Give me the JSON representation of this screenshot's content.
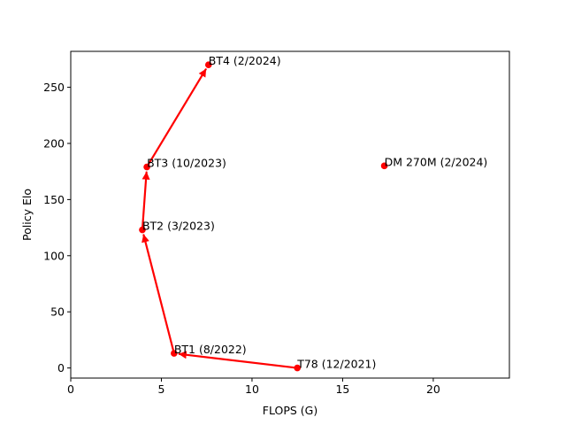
{
  "chart_data": {
    "type": "scatter",
    "xlabel": "FLOPS (G)",
    "ylabel": "Policy Elo",
    "xlim": [
      0,
      24.2
    ],
    "ylim": [
      -9,
      282
    ],
    "x_ticks": [
      0,
      5,
      10,
      15,
      20
    ],
    "y_ticks": [
      0,
      50,
      100,
      150,
      200,
      250
    ],
    "grid": false,
    "line_color": "#ff0000",
    "points": [
      {
        "label": "T78 (12/2021)",
        "x": 12.5,
        "y": 0
      },
      {
        "label": "BT1 (8/2022)",
        "x": 5.7,
        "y": 13
      },
      {
        "label": "BT2 (3/2023)",
        "x": 3.95,
        "y": 123
      },
      {
        "label": "BT3 (10/2023)",
        "x": 4.2,
        "y": 179
      },
      {
        "label": "BT4 (2/2024)",
        "x": 7.6,
        "y": 270
      },
      {
        "label": "DM 270M (2/2024)",
        "x": 17.3,
        "y": 180
      }
    ],
    "arrows": [
      {
        "from": "T78 (12/2021)",
        "to": "BT1 (8/2022)"
      },
      {
        "from": "BT1 (8/2022)",
        "to": "BT2 (3/2023)"
      },
      {
        "from": "BT2 (3/2023)",
        "to": "BT3 (10/2023)"
      },
      {
        "from": "BT3 (10/2023)",
        "to": "BT4 (2/2024)"
      }
    ]
  }
}
